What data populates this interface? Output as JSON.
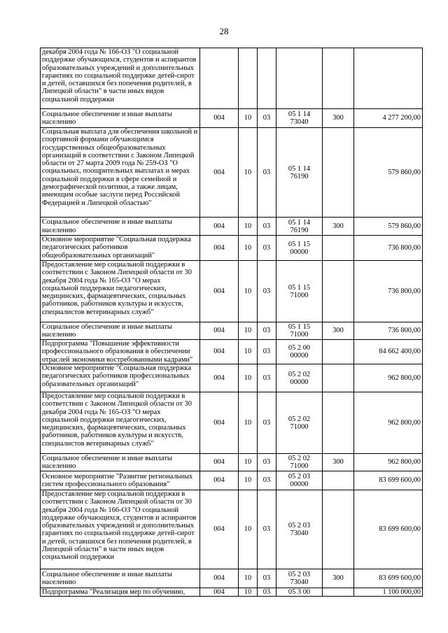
{
  "page_number": "28",
  "rows": [
    {
      "name": "декабря 2004 года № 166-ОЗ \"О социальной поддержке обучающихся, студентов и аспирантов образовательных учреждений и дополнительных гарантиях по социальной поддержке детей-сирот и детей, оставшихся без попечения родителей, в Липецкой области\" в части иных видов социальной поддержки",
      "ministry": "",
      "section": "",
      "subsection": "",
      "code": "",
      "type": "",
      "amount": ""
    },
    {
      "name": "Социальное обеспечение и иные выплаты населению",
      "ministry": "004",
      "section": "10",
      "subsection": "03",
      "code": "05 1 14 73040",
      "type": "300",
      "amount": "4 277 200,00"
    },
    {
      "name": "Социальная выплата для обеспечения школьной и спортивной формами обучающимся государственных общеобразовательных организаций в соответствии с Законом Липецкой области от 27 марта 2009 года № 259-ОЗ \"О социальных, поощрительных выплатах и мерах социальной поддержки в сфере семейной и демографической политики, а также лицам, имеющим особые заслуги перед Российской Федерацией и Липецкой областью\"",
      "ministry": "004",
      "section": "10",
      "subsection": "03",
      "code": "05 1 14 76190",
      "type": "",
      "amount": "579 860,00"
    },
    {
      "name": "Социальное обеспечение и иные выплаты населению",
      "ministry": "004",
      "section": "10",
      "subsection": "03",
      "code": "05 1 14 76190",
      "type": "300",
      "amount": "579 860,00"
    },
    {
      "name": "Основное мероприятие \"Социальная поддержка педагогических работников общеобразовательных организаций\"",
      "ministry": "004",
      "section": "10",
      "subsection": "03",
      "code": "05 1 15 00000",
      "type": "",
      "amount": "736 800,00"
    },
    {
      "name": "Предоставление мер социальной поддержки в соответствии с Законом Липецкой области от 30 декабря 2004 года № 165-ОЗ \"О мерах социальной поддержки педагогических, медицинских, фармацевтических, социальных работников, работников культуры и искусств, специалистов ветеринарных служб\"",
      "ministry": "004",
      "section": "10",
      "subsection": "03",
      "code": "05 1 15 71000",
      "type": "",
      "amount": "736 800,00"
    },
    {
      "name": "Социальное обеспечение и иные выплаты населению",
      "ministry": "004",
      "section": "10",
      "subsection": "03",
      "code": "05 1 15 71000",
      "type": "300",
      "amount": "736 800,00"
    },
    {
      "name": "Подпрограмма \"Повышение эффективности профессионального образования в обеспечении отраслей экономики востребованными кадрами\"",
      "ministry": "004",
      "section": "10",
      "subsection": "03",
      "code": "05 2 00 00000",
      "type": "",
      "amount": "84 662 400,00"
    },
    {
      "name": "Основное мероприятие \"Социальная поддержка педагогических работников профессиональных образовательных организаций\"",
      "ministry": "004",
      "section": "10",
      "subsection": "03",
      "code": "05 2 02 00000",
      "type": "",
      "amount": "962 800,00"
    },
    {
      "name": "Предоставление мер социальной поддержки в соответствии с Законом Липецкой области от 30 декабря 2004 года № 165-ОЗ \"О мерах социальной поддержки педагогических, медицинских, фармацевтических, социальных работников, работников культуры и искусств, специалистов ветеринарных служб\"",
      "ministry": "004",
      "section": "10",
      "subsection": "03",
      "code": "05 2 02 71000",
      "type": "",
      "amount": "962 800,00"
    },
    {
      "name": "Социальное обеспечение и иные выплаты населению",
      "ministry": "004",
      "section": "10",
      "subsection": "03",
      "code": "05 2 02 71000",
      "type": "300",
      "amount": "962 800,00"
    },
    {
      "name": "Основное мероприятие \"Развитие региональных систем профессионального образования\"",
      "ministry": "004",
      "section": "10",
      "subsection": "03",
      "code": "05 2 03 00000",
      "type": "",
      "amount": "83 699 600,00"
    },
    {
      "name": "Предоставление мер социальной поддержки в соответствии с Законом Липецкой области от 30 декабря 2004 года № 166-ОЗ \"О социальной поддержке обучающихся, студентов и аспирантов образовательных учреждений и дополнительных гарантиях по социальной поддержке детей-сирот и детей, оставшихся без попечения родителей, в Липецкой области\" в части иных видов социальной поддержки",
      "ministry": "004",
      "section": "10",
      "subsection": "03",
      "code": "05 2 03 73040",
      "type": "",
      "amount": "83 699 600,00"
    },
    {
      "name": "Социальное обеспечение и иные выплаты населению",
      "ministry": "004",
      "section": "10",
      "subsection": "03",
      "code": "05 2 03 73040",
      "type": "300",
      "amount": "83 699 600,00"
    },
    {
      "name": "Подпрограмма \"Реализация мер по обучению,",
      "ministry": "004",
      "section": "10",
      "subsection": "03",
      "code": "05 3 00",
      "type": "",
      "amount": "1 100 000,00"
    }
  ]
}
